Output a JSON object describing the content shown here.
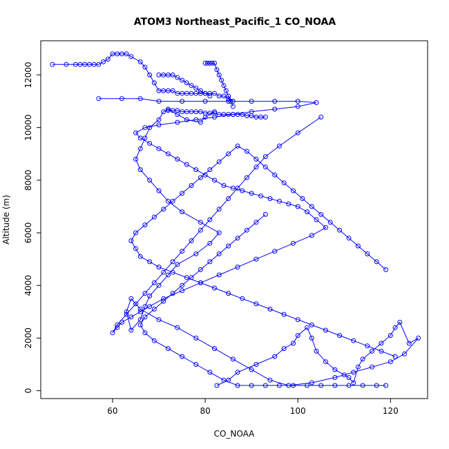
{
  "chart_data": {
    "type": "scatter",
    "title": "ATOM3 Northeast_Pacific_1 CO_NOAA",
    "xlabel": "CO_NOAA",
    "ylabel": "Altitude (m)",
    "xlim": [
      44.5,
      128
    ],
    "ylim": [
      -300,
      13300
    ],
    "xticks": [
      "60",
      "80",
      "100",
      "120"
    ],
    "yticks": [
      "0",
      "2000",
      "4000",
      "6000",
      "8000",
      "10000",
      "12000"
    ],
    "grid": false,
    "legend": "none",
    "color": "#0000ff",
    "series": [
      {
        "style": "lines+points",
        "x": [
          82.5,
          85,
          87,
          91,
          95,
          97,
          99,
          100,
          102,
          103,
          104,
          106,
          108,
          110,
          111,
          112,
          113,
          114,
          116,
          118,
          120,
          121,
          122,
          124,
          126,
          123,
          120,
          116,
          112,
          108,
          103,
          98,
          94,
          90,
          86,
          82,
          78,
          74,
          70,
          66,
          64,
          63,
          64,
          66,
          67,
          68,
          70,
          72,
          74,
          78,
          81,
          83,
          79,
          75,
          72,
          70,
          68,
          66,
          65,
          66,
          67,
          68,
          70,
          71,
          72,
          74,
          76,
          79,
          80,
          82
        ],
        "y": [
          200,
          400,
          700,
          1000,
          1300,
          1600,
          1800,
          2100,
          2400,
          2000,
          1500,
          1100,
          800,
          600,
          500,
          300,
          900,
          1200,
          1500,
          1800,
          2100,
          2400,
          2600,
          1800,
          2000,
          1400,
          1100,
          900,
          700,
          500,
          300,
          200,
          400,
          800,
          1200,
          1600,
          2000,
          2400,
          2700,
          3100,
          3500,
          3000,
          2300,
          2700,
          3200,
          3600,
          4000,
          4400,
          4800,
          5200,
          5600,
          6000,
          6400,
          6800,
          7200,
          7600,
          8000,
          8400,
          8800,
          9200,
          9600,
          10000,
          10300,
          10600,
          10700,
          10500,
          10300,
          10200,
          10400,
          10600
        ]
      },
      {
        "style": "lines+points",
        "x": [
          47,
          50,
          52,
          53,
          54,
          55,
          56,
          57,
          58,
          59,
          60,
          61,
          62,
          63,
          64,
          66,
          67,
          68,
          69,
          70,
          71,
          72,
          73,
          74,
          75,
          76,
          77,
          78,
          79,
          80,
          81,
          82,
          83,
          84,
          85,
          86
        ],
        "y": [
          12400,
          12400,
          12400,
          12400,
          12400,
          12400,
          12400,
          12400,
          12500,
          12600,
          12800,
          12800,
          12800,
          12800,
          12700,
          12500,
          12300,
          12000,
          11700,
          11400,
          11400,
          11400,
          11400,
          11300,
          11300,
          11300,
          11300,
          11300,
          11300,
          11300,
          11300,
          11300,
          11200,
          11200,
          11100,
          11000
        ]
      },
      {
        "style": "lines+points",
        "x": [
          57,
          62,
          66,
          70,
          75,
          80,
          85,
          90,
          95,
          100,
          104,
          100,
          95,
          90,
          86,
          82,
          78,
          74,
          70,
          67,
          65,
          66,
          68,
          70,
          72,
          74,
          76,
          78,
          80,
          82,
          84,
          86,
          88,
          90,
          92,
          94,
          96,
          98,
          100,
          102,
          104,
          106,
          103,
          99,
          95,
          91,
          87,
          83,
          79,
          75,
          71,
          68,
          66,
          64,
          62,
          61,
          60,
          61,
          63,
          65,
          67,
          69,
          71,
          73,
          75,
          77,
          79,
          81,
          83,
          85,
          87,
          89,
          91,
          93,
          96,
          100,
          105
        ],
        "y": [
          11100,
          11100,
          11100,
          11000,
          11000,
          11000,
          11000,
          11000,
          11000,
          11000,
          10950,
          10800,
          10700,
          10600,
          10500,
          10400,
          10300,
          10200,
          10100,
          10000,
          9800,
          9600,
          9400,
          9200,
          9000,
          8800,
          8600,
          8400,
          8200,
          8000,
          7800,
          7700,
          7600,
          7500,
          7400,
          7300,
          7200,
          7100,
          7000,
          6800,
          6500,
          6200,
          5900,
          5600,
          5300,
          5000,
          4700,
          4400,
          4100,
          3800,
          3500,
          3200,
          3000,
          2800,
          2600,
          2400,
          2200,
          2500,
          2900,
          3300,
          3700,
          4100,
          4500,
          4900,
          5300,
          5700,
          6100,
          6500,
          6900,
          7300,
          7700,
          8100,
          8500,
          8900,
          9300,
          9800,
          10400
        ]
      },
      {
        "style": "lines+points",
        "x": [
          121,
          118,
          115,
          112,
          109,
          106,
          103,
          100,
          97,
          94,
          91,
          88,
          85,
          82,
          79,
          76,
          73,
          70,
          68,
          66,
          65,
          64,
          65,
          67,
          69,
          71,
          73,
          75,
          77,
          79,
          81,
          83,
          85,
          87,
          89,
          91,
          93,
          95,
          97,
          99,
          101,
          103,
          105,
          107,
          109,
          111,
          113,
          115,
          117,
          119
        ],
        "y": [
          1300,
          1500,
          1700,
          1900,
          2100,
          2300,
          2500,
          2700,
          2900,
          3100,
          3300,
          3500,
          3700,
          3900,
          4100,
          4300,
          4500,
          4700,
          4900,
          5100,
          5400,
          5700,
          6000,
          6300,
          6600,
          6900,
          7200,
          7500,
          7800,
          8100,
          8400,
          8700,
          9000,
          9300,
          9100,
          8800,
          8500,
          8200,
          7900,
          7600,
          7300,
          7000,
          6700,
          6400,
          6100,
          5800,
          5500,
          5200,
          4900,
          4600
        ]
      },
      {
        "style": "lines+points",
        "x": [
          119,
          117,
          114,
          111,
          108,
          105,
          102,
          99,
          96,
          93,
          90,
          87,
          84,
          81,
          78,
          75,
          72,
          69,
          67,
          66,
          67,
          69,
          71,
          73,
          75,
          77,
          79,
          81,
          83,
          85,
          87,
          89,
          91,
          93
        ],
        "y": [
          200,
          200,
          200,
          200,
          200,
          200,
          200,
          200,
          200,
          200,
          200,
          200,
          400,
          700,
          1000,
          1300,
          1600,
          1900,
          2200,
          2500,
          2800,
          3100,
          3400,
          3700,
          4000,
          4300,
          4600,
          4900,
          5200,
          5500,
          5800,
          6100,
          6400,
          6700
        ]
      },
      {
        "style": "lines+points",
        "x": [
          72,
          73,
          74,
          75,
          76,
          77,
          78,
          79,
          80,
          81,
          82,
          83,
          84,
          85,
          86,
          87,
          88,
          89,
          90,
          91,
          92,
          93
        ],
        "y": [
          10650,
          10650,
          10650,
          10600,
          10600,
          10600,
          10600,
          10600,
          10550,
          10550,
          10550,
          10500,
          10500,
          10500,
          10500,
          10500,
          10500,
          10450,
          10450,
          10400,
          10400,
          10400
        ]
      },
      {
        "style": "lines+points",
        "x": [
          80,
          80.5,
          81,
          81.5,
          82,
          82.5,
          83,
          83.5,
          84,
          84.5,
          85,
          85.5,
          86
        ],
        "y": [
          12450,
          12450,
          12450,
          12450,
          12450,
          12200,
          12000,
          11800,
          11600,
          11400,
          11200,
          11000,
          10800
        ]
      },
      {
        "style": "lines+points",
        "x": [
          70,
          71,
          72,
          73,
          74,
          75,
          76,
          77,
          78,
          79,
          80,
          81
        ],
        "y": [
          12000,
          12000,
          12000,
          12000,
          11900,
          11800,
          11700,
          11600,
          11500,
          11400,
          11300,
          11200
        ]
      }
    ]
  }
}
